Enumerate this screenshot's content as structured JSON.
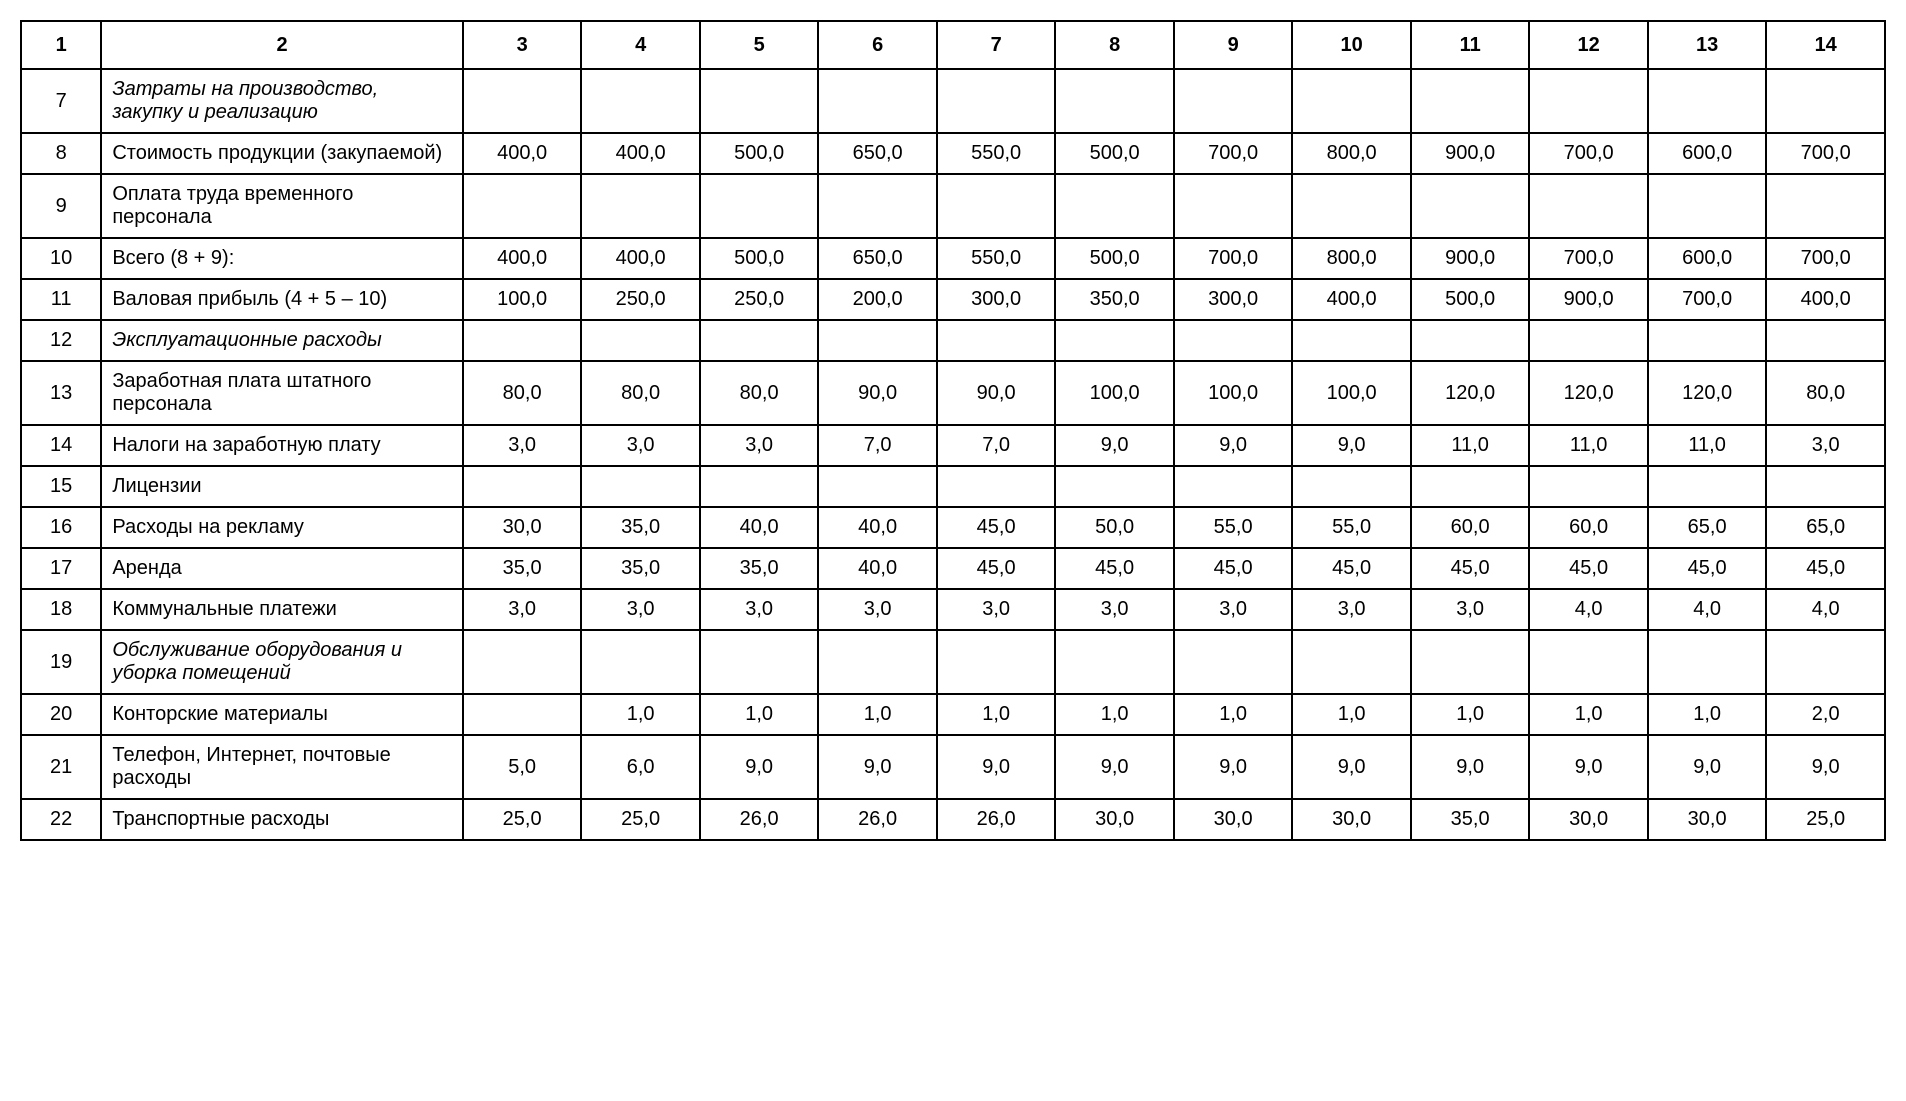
{
  "table": {
    "type": "table",
    "border_color": "#000000",
    "background_color": "#ffffff",
    "text_color": "#000000",
    "font_family": "Arial, sans-serif",
    "font_size_pt": 15,
    "column_widths": {
      "col1": 80,
      "col2": 360,
      "col_data": 118
    },
    "columns": [
      "1",
      "2",
      "3",
      "4",
      "5",
      "6",
      "7",
      "8",
      "9",
      "10",
      "11",
      "12",
      "13",
      "14"
    ],
    "rows": [
      {
        "num": "7",
        "desc": "Затраты на производство, закупку и реализацию",
        "italic": true,
        "values": [
          "",
          "",
          "",
          "",
          "",
          "",
          "",
          "",
          "",
          "",
          "",
          ""
        ]
      },
      {
        "num": "8",
        "desc": "Стоимость продукции (закупаемой)",
        "italic": false,
        "values": [
          "400,0",
          "400,0",
          "500,0",
          "650,0",
          "550,0",
          "500,0",
          "700,0",
          "800,0",
          "900,0",
          "700,0",
          "600,0",
          "700,0"
        ]
      },
      {
        "num": "9",
        "desc": "Оплата труда временного персонала",
        "italic": false,
        "values": [
          "",
          "",
          "",
          "",
          "",
          "",
          "",
          "",
          "",
          "",
          "",
          ""
        ]
      },
      {
        "num": "10",
        "desc": "Всего (8 + 9):",
        "italic": false,
        "values": [
          "400,0",
          "400,0",
          "500,0",
          "650,0",
          "550,0",
          "500,0",
          "700,0",
          "800,0",
          "900,0",
          "700,0",
          "600,0",
          "700,0"
        ]
      },
      {
        "num": "11",
        "desc": "Валовая прибыль (4 + 5 – 10)",
        "italic": false,
        "values": [
          "100,0",
          "250,0",
          "250,0",
          "200,0",
          "300,0",
          "350,0",
          "300,0",
          "400,0",
          "500,0",
          "900,0",
          "700,0",
          "400,0"
        ]
      },
      {
        "num": "12",
        "desc": "Эксплуатационные расходы",
        "italic": true,
        "values": [
          "",
          "",
          "",
          "",
          "",
          "",
          "",
          "",
          "",
          "",
          "",
          ""
        ]
      },
      {
        "num": "13",
        "desc": "Заработная плата штатного персонала",
        "italic": false,
        "values": [
          "80,0",
          "80,0",
          "80,0",
          "90,0",
          "90,0",
          "100,0",
          "100,0",
          "100,0",
          "120,0",
          "120,0",
          "120,0",
          "80,0"
        ]
      },
      {
        "num": "14",
        "desc": "Налоги на заработную плату",
        "italic": false,
        "values": [
          "3,0",
          "3,0",
          "3,0",
          "7,0",
          "7,0",
          "9,0",
          "9,0",
          "9,0",
          "11,0",
          "11,0",
          "11,0",
          "3,0"
        ]
      },
      {
        "num": "15",
        "desc": "Лицензии",
        "italic": false,
        "values": [
          "",
          "",
          "",
          "",
          "",
          "",
          "",
          "",
          "",
          "",
          "",
          ""
        ]
      },
      {
        "num": "16",
        "desc": "Расходы на рекламу",
        "italic": false,
        "values": [
          "30,0",
          "35,0",
          "40,0",
          "40,0",
          "45,0",
          "50,0",
          "55,0",
          "55,0",
          "60,0",
          "60,0",
          "65,0",
          "65,0"
        ]
      },
      {
        "num": "17",
        "desc": "Аренда",
        "italic": false,
        "values": [
          "35,0",
          "35,0",
          "35,0",
          "40,0",
          "45,0",
          "45,0",
          "45,0",
          "45,0",
          "45,0",
          "45,0",
          "45,0",
          "45,0"
        ]
      },
      {
        "num": "18",
        "desc": "Коммунальные платежи",
        "italic": false,
        "values": [
          "3,0",
          "3,0",
          "3,0",
          "3,0",
          "3,0",
          "3,0",
          "3,0",
          "3,0",
          "3,0",
          "4,0",
          "4,0",
          "4,0"
        ]
      },
      {
        "num": "19",
        "desc": "Обслуживание оборудования и уборка помещений",
        "italic": true,
        "values": [
          "",
          "",
          "",
          "",
          "",
          "",
          "",
          "",
          "",
          "",
          "",
          ""
        ]
      },
      {
        "num": "20",
        "desc": "Конторские материалы",
        "italic": false,
        "values": [
          "",
          "1,0",
          "1,0",
          "1,0",
          "1,0",
          "1,0",
          "1,0",
          "1,0",
          "1,0",
          "1,0",
          "1,0",
          "2,0"
        ]
      },
      {
        "num": "21",
        "desc": "Телефон, Интернет, почтовые расходы",
        "italic": false,
        "values": [
          "5,0",
          "6,0",
          "9,0",
          "9,0",
          "9,0",
          "9,0",
          "9,0",
          "9,0",
          "9,0",
          "9,0",
          "9,0",
          "9,0"
        ]
      },
      {
        "num": "22",
        "desc": "Транспортные расходы",
        "italic": false,
        "values": [
          "25,0",
          "25,0",
          "26,0",
          "26,0",
          "26,0",
          "30,0",
          "30,0",
          "30,0",
          "35,0",
          "30,0",
          "30,0",
          "25,0"
        ]
      }
    ]
  }
}
